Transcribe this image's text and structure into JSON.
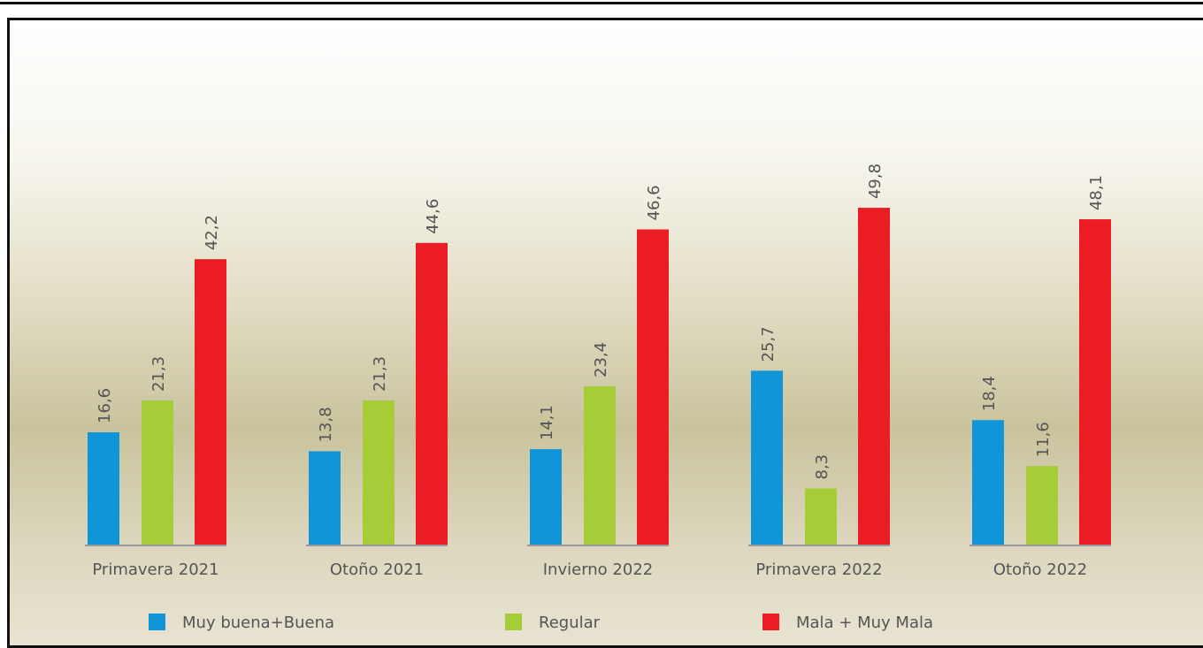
{
  "chart_data": {
    "type": "bar",
    "categories": [
      "Primavera 2021",
      "Otoño 2021",
      "Invierno 2022",
      "Primavera 2022",
      "Otoño 2022"
    ],
    "series": [
      {
        "name": "Muy buena+Buena",
        "color": "#0f95d8",
        "values": [
          16.6,
          13.8,
          14.1,
          25.7,
          18.4
        ],
        "value_labels": [
          "16,6",
          "13,8",
          "14,1",
          "25,7",
          "18,4"
        ]
      },
      {
        "name": "Regular",
        "color": "#a6cc38",
        "values": [
          21.3,
          21.3,
          23.4,
          8.3,
          11.6
        ],
        "value_labels": [
          "21,3",
          "21,3",
          "23,4",
          "8,3",
          "11,6"
        ]
      },
      {
        "name": "Mala + Muy Mala",
        "color": "#ec1c24",
        "values": [
          42.2,
          44.6,
          46.6,
          49.8,
          48.1
        ],
        "value_labels": [
          "42,2",
          "44,6",
          "46,6",
          "49,8",
          "48,1"
        ]
      }
    ]
  }
}
